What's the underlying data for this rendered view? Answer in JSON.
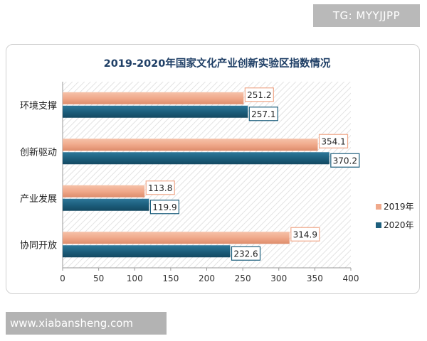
{
  "watermarks": {
    "top": "TG: MYYJJPP",
    "bottom": "www.xiabansheng.com"
  },
  "chart_data": {
    "type": "bar",
    "orientation": "horizontal",
    "title": "2019-2020年国家文化产业创新实验区指数情况",
    "categories": [
      "环境支撑",
      "创新驱动",
      "产业发展",
      "协同开放"
    ],
    "series": [
      {
        "name": "2019年",
        "color": "#f0a98b",
        "values": [
          251.2,
          354.1,
          113.8,
          314.9
        ]
      },
      {
        "name": "2020年",
        "color": "#1d5f7d",
        "values": [
          257.1,
          370.2,
          119.9,
          232.6
        ]
      }
    ],
    "xlim": [
      0,
      400
    ],
    "xticks": [
      "0",
      "50",
      "100",
      "150",
      "200",
      "250",
      "300",
      "350",
      "400"
    ],
    "xlabel": "",
    "ylabel": "",
    "grid": false,
    "plot_background": "hatched",
    "legend_position": "right",
    "data_labels": true
  }
}
